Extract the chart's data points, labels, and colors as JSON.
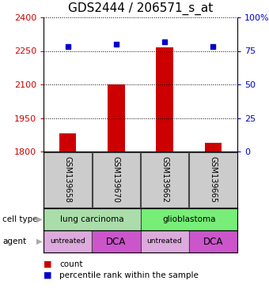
{
  "title": "GDS2444 / 206571_s_at",
  "samples": [
    "GSM139658",
    "GSM139670",
    "GSM139662",
    "GSM139665"
  ],
  "bar_values": [
    1880,
    2100,
    2265,
    1840
  ],
  "percentile_values": [
    78,
    80,
    82,
    78
  ],
  "ylim_left": [
    1800,
    2400
  ],
  "ylim_right": [
    0,
    100
  ],
  "yticks_left": [
    1800,
    1950,
    2100,
    2250,
    2400
  ],
  "yticks_right": [
    0,
    25,
    50,
    75,
    100
  ],
  "bar_color": "#cc0000",
  "dot_color": "#0000cc",
  "bar_width": 0.35,
  "cell_types": [
    [
      "lung carcinoma",
      2
    ],
    [
      "glioblastoma",
      2
    ]
  ],
  "cell_type_colors": [
    "#aaddaa",
    "#77ee77"
  ],
  "agents": [
    "untreated",
    "DCA",
    "untreated",
    "DCA"
  ],
  "agent_colors_light": "#ddaadd",
  "agent_colors_dark": "#cc55cc",
  "sample_bg_color": "#cccccc",
  "title_fontsize": 11,
  "axis_label_color_left": "#cc0000",
  "axis_label_color_right": "#0000cc",
  "legend_square_red": "#cc0000",
  "legend_square_blue": "#0000cc",
  "arrow_color": "#aaaaaa"
}
